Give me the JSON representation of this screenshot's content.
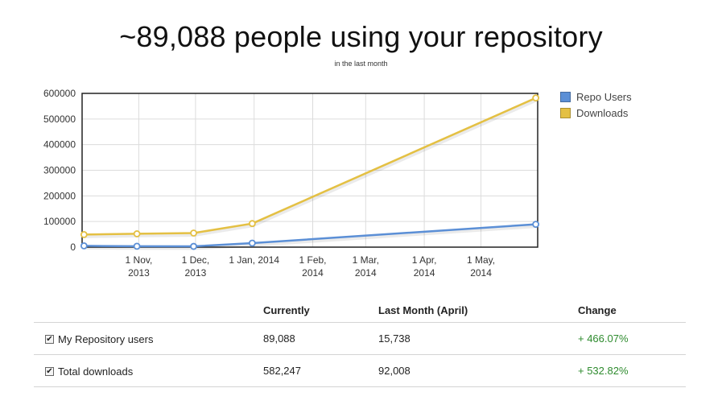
{
  "header": {
    "title": "~89,088 people using your repository",
    "subtitle": "in the last month"
  },
  "chart_data": {
    "type": "line",
    "ylim": [
      0,
      600000
    ],
    "yticks": [
      0,
      100000,
      200000,
      300000,
      400000,
      500000,
      600000
    ],
    "xlim": [
      "2013-10-02",
      "2014-05-31"
    ],
    "xticks": [
      {
        "date": "2013-11-01",
        "label": [
          "1 Nov,",
          "2013"
        ]
      },
      {
        "date": "2013-12-01",
        "label": [
          "1 Dec,",
          "2013"
        ]
      },
      {
        "date": "2014-01-01",
        "label": [
          "1 Jan, 2014"
        ]
      },
      {
        "date": "2014-02-01",
        "label": [
          "1 Feb,",
          "2014"
        ]
      },
      {
        "date": "2014-03-01",
        "label": [
          "1 Mar,",
          "2014"
        ]
      },
      {
        "date": "2014-04-01",
        "label": [
          "1 Apr,",
          "2014"
        ]
      },
      {
        "date": "2014-05-01",
        "label": [
          "1 May,",
          "2014"
        ]
      }
    ],
    "grid": true,
    "legend_position": "right-top",
    "series": [
      {
        "name": "Repo Users",
        "color": "#5b8fd6",
        "points": [
          {
            "x": "2013-10-03",
            "y": 5000
          },
          {
            "x": "2013-10-31",
            "y": 3500
          },
          {
            "x": "2013-11-30",
            "y": 3000
          },
          {
            "x": "2013-12-31",
            "y": 15738
          },
          {
            "x": "2014-05-30",
            "y": 89088
          }
        ]
      },
      {
        "name": "Downloads",
        "color": "#e4c043",
        "points": [
          {
            "x": "2013-10-03",
            "y": 49000
          },
          {
            "x": "2013-10-31",
            "y": 52000
          },
          {
            "x": "2013-11-30",
            "y": 55000
          },
          {
            "x": "2013-12-31",
            "y": 92008
          },
          {
            "x": "2014-05-30",
            "y": 582247
          }
        ]
      }
    ]
  },
  "table": {
    "headers": [
      "",
      "Currently",
      "Last Month (April)",
      "Change"
    ],
    "rows": [
      {
        "label": "My Repository users",
        "checked": true,
        "current": "89,088",
        "last": "15,738",
        "change": "+ 466.07%"
      },
      {
        "label": "Total downloads",
        "checked": true,
        "current": "582,247",
        "last": "92,008",
        "change": "+ 532.82%"
      }
    ]
  }
}
